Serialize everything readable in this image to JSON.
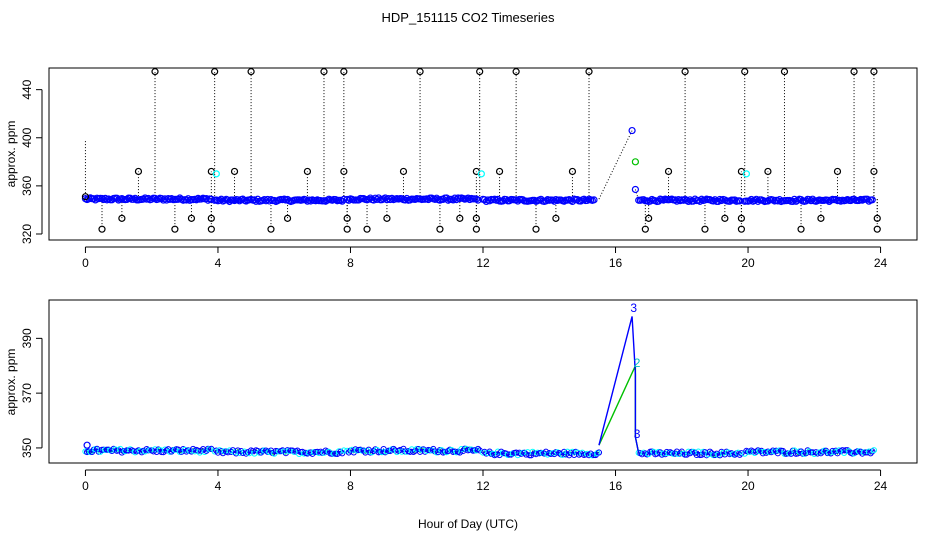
{
  "figure": {
    "title": "HDP_151115  CO2 Timeseries",
    "xlabel": "Hour of Day (UTC)"
  },
  "colors": {
    "black_points": "#000000",
    "blue_points": "#0000ff",
    "cyan_points": "#00ffff",
    "green_points": "#00c000"
  },
  "chart_data": [
    {
      "type": "scatter",
      "panel": "top",
      "ylabel": "approx. ppm",
      "xlim": [
        -1.1,
        25.1
      ],
      "ylim": [
        315,
        458
      ],
      "x_ticks": [
        0,
        4,
        8,
        12,
        16,
        20,
        24
      ],
      "y_ticks": [
        320,
        360,
        400,
        440
      ],
      "grid": false,
      "segments": [
        {
          "start": 0.0,
          "end": 3.8,
          "mean": 349
        },
        {
          "start": 3.9,
          "end": 7.8,
          "mean": 348
        },
        {
          "start": 7.9,
          "end": 11.9,
          "mean": 349
        },
        {
          "start": 12.0,
          "end": 15.4,
          "mean": 348
        },
        {
          "start": 16.7,
          "end": 19.8,
          "mean": 348
        },
        {
          "start": 19.9,
          "end": 23.8,
          "mean": 348
        }
      ],
      "interpolation": {
        "from": [
          15.5,
          349
        ],
        "to": [
          16.5,
          406
        ],
        "to_low": [
          16.6,
          357
        ],
        "back": [
          16.7,
          348
        ]
      },
      "black_high_spikes": [
        2.1,
        3.9,
        5.0,
        7.2,
        7.8,
        10.1,
        11.9,
        13.0,
        15.2,
        18.1,
        19.9,
        21.1,
        23.2,
        23.8
      ],
      "black_high_value": 455,
      "black_mid_spikes": [
        1.6,
        3.8,
        4.5,
        6.7,
        7.8,
        9.6,
        11.8,
        12.5,
        14.7,
        17.6,
        19.8,
        20.6,
        22.7,
        23.8
      ],
      "black_mid_value": 372,
      "black_low_spikes": [
        0.5,
        2.7,
        3.8,
        5.6,
        7.9,
        8.5,
        10.7,
        11.8,
        13.6,
        16.9,
        18.7,
        19.8,
        21.6,
        23.9
      ],
      "black_low_value": 324,
      "black_lowmid_spikes": [
        1.1,
        3.2,
        3.8,
        6.1,
        7.9,
        9.1,
        11.3,
        11.8,
        14.2,
        17.0,
        19.3,
        19.8,
        22.2,
        23.9
      ],
      "black_lowmid_value": 333,
      "cyan_points": [
        [
          3.95,
          370
        ],
        [
          11.95,
          370
        ],
        [
          19.95,
          370
        ]
      ],
      "green_points": [
        [
          16.6,
          380
        ]
      ],
      "blue_special": [
        [
          16.5,
          406
        ],
        [
          16.6,
          357
        ]
      ]
    },
    {
      "type": "line",
      "panel": "bottom",
      "ylabel": "approx. ppm",
      "xlim": [
        -1.1,
        25.1
      ],
      "ylim": [
        344.5,
        404
      ],
      "x_ticks": [
        0,
        4,
        8,
        12,
        16,
        20,
        24
      ],
      "y_ticks": [
        350,
        370,
        390
      ],
      "grid": false,
      "segments": [
        {
          "start": 0.0,
          "end": 3.8,
          "mean": 349.0
        },
        {
          "start": 3.9,
          "end": 7.8,
          "mean": 348.5
        },
        {
          "start": 7.9,
          "end": 11.9,
          "mean": 349.0
        },
        {
          "start": 12.0,
          "end": 15.5,
          "mean": 348.0
        },
        {
          "start": 16.7,
          "end": 19.8,
          "mean": 348.0
        },
        {
          "start": 19.9,
          "end": 23.8,
          "mean": 348.5
        }
      ],
      "blue_spike": [
        [
          15.5,
          351
        ],
        [
          16.5,
          398
        ],
        [
          16.6,
          377
        ],
        [
          16.6,
          354
        ],
        [
          16.7,
          348
        ]
      ],
      "green_spike": [
        [
          15.5,
          351
        ],
        [
          16.6,
          380
        ],
        [
          16.6,
          354
        ],
        [
          16.7,
          348
        ]
      ],
      "point_labels": [
        {
          "x": 16.55,
          "y": 401,
          "text": "3",
          "color": "#0000ff"
        },
        {
          "x": 16.65,
          "y": 381,
          "text": "2",
          "color": "#00c0c0"
        },
        {
          "x": 16.65,
          "y": 355,
          "text": "3",
          "color": "#0000ff"
        }
      ]
    }
  ]
}
